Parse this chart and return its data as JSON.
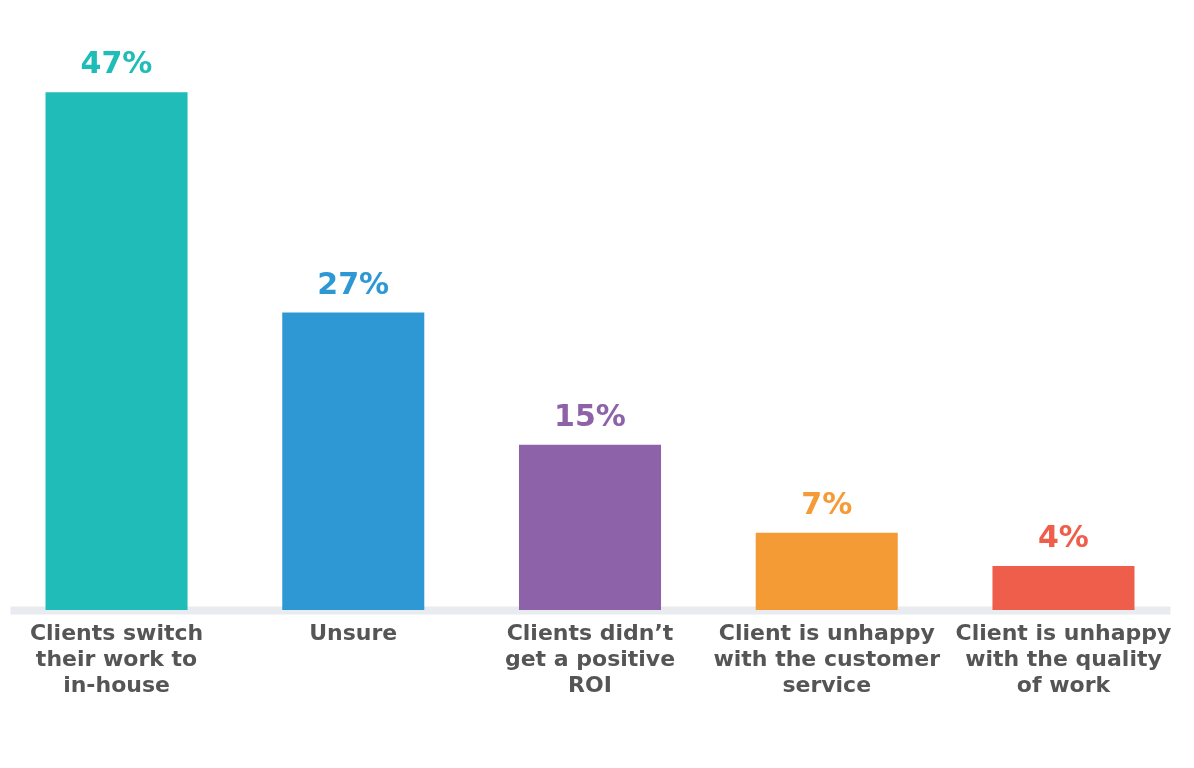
{
  "chart_data": {
    "type": "bar",
    "categories": [
      "Clients switch their work to in-house",
      "Unsure",
      "Clients didn’t get a positive ROI",
      "Client is unhappy with the customer service",
      "Client is unhappy with the quality of work"
    ],
    "values": [
      47,
      27,
      15,
      7,
      4
    ],
    "colors": [
      "#20bdb8",
      "#2e98d4",
      "#8e62a8",
      "#f59b36",
      "#ef5e4a"
    ],
    "value_labels": [
      "47%",
      "27%",
      "15%",
      "7%",
      "4%"
    ]
  }
}
